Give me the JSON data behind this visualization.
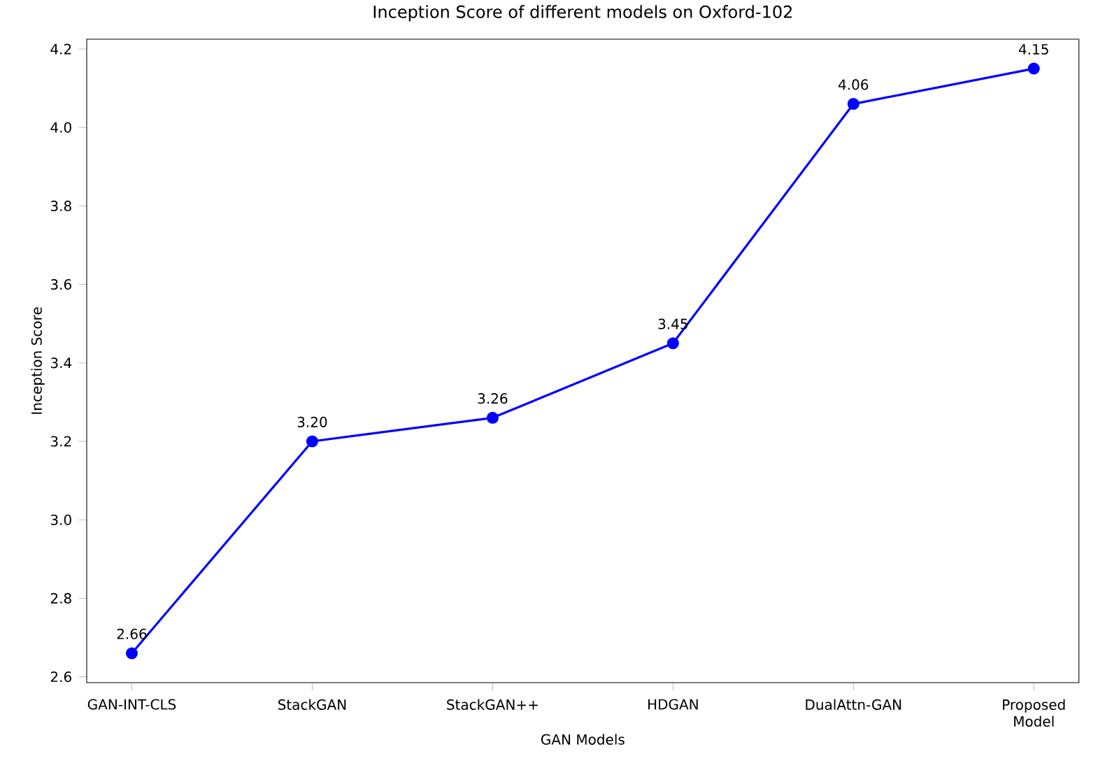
{
  "chart_data": {
    "type": "line",
    "title": "Inception Score of different models on Oxford-102",
    "xlabel": "GAN Models",
    "ylabel": "Inception Score",
    "categories": [
      "GAN-INT-CLS",
      "StackGAN",
      "StackGAN++",
      "HDGAN",
      "DualAttn-GAN",
      "Proposed Model"
    ],
    "series": [
      {
        "color": "#0000ff",
        "values": [
          2.66,
          3.2,
          3.26,
          3.45,
          4.06,
          4.15
        ],
        "value_labels": [
          "2.66",
          "3.20",
          "3.26",
          "3.45",
          "4.06",
          "4.15"
        ]
      }
    ],
    "ylim": [
      2.585,
      4.225
    ],
    "yticks": [
      {
        "value": 2.6,
        "label": "2.6"
      },
      {
        "value": 2.8,
        "label": "2.8"
      },
      {
        "value": 3.0,
        "label": "3.0"
      },
      {
        "value": 3.2,
        "label": "3.2"
      },
      {
        "value": 3.4,
        "label": "3.4"
      },
      {
        "value": 3.6,
        "label": "3.6"
      },
      {
        "value": 3.8,
        "label": "3.8"
      },
      {
        "value": 4.0,
        "label": "4.0"
      },
      {
        "value": 4.2,
        "label": "4.2"
      }
    ],
    "marker": "circle",
    "line_style": "solid",
    "grid": false
  }
}
